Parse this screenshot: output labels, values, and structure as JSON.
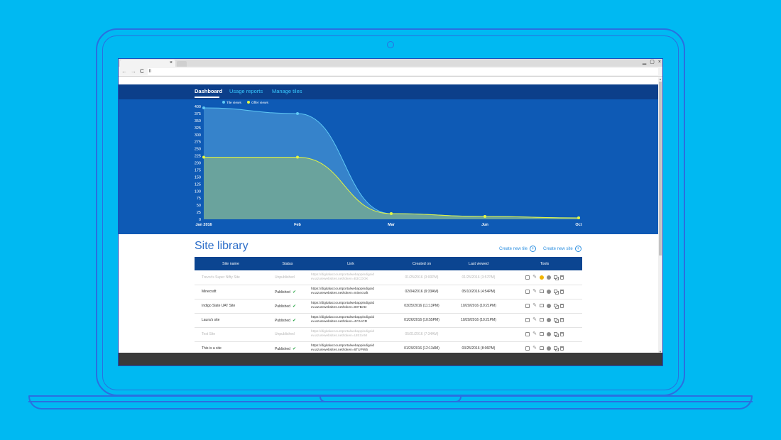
{
  "browser": {
    "tab_close_glyph": "×",
    "window_controls": [
      "▁",
      "▢",
      "×"
    ],
    "address_text": "fi",
    "nav": {
      "back": "←",
      "forward": "→",
      "reload": "C"
    }
  },
  "dashboard": {
    "tabs": [
      {
        "label": "Dashboard",
        "active": true
      },
      {
        "label": "Usage reports",
        "active": false
      },
      {
        "label": "Manage tiles",
        "active": false
      }
    ]
  },
  "chart_data": {
    "type": "area",
    "categories": [
      "Jan 2016",
      "Feb",
      "Mar",
      "Jun",
      "Oct"
    ],
    "series": [
      {
        "name": "Tile views",
        "color": "#5fc8f5",
        "values": [
          395,
          375,
          20,
          10,
          5
        ]
      },
      {
        "name": "Offer views",
        "color": "#e4f542",
        "values": [
          220,
          220,
          20,
          10,
          5
        ]
      }
    ],
    "y_ticks": [
      400,
      375,
      350,
      325,
      300,
      275,
      250,
      225,
      200,
      175,
      150,
      125,
      100,
      75,
      50,
      25,
      0
    ],
    "ylim": [
      0,
      400
    ],
    "legend_placement": "top-left",
    "grid": false
  },
  "site_library": {
    "title": "Site library",
    "actions": [
      {
        "label": "Create new tile",
        "icon": "plus-circle-icon"
      },
      {
        "label": "Create new site",
        "icon": "plus-circle-icon"
      }
    ],
    "columns": [
      "Site name",
      "Status",
      "Link",
      "Created on",
      "Last viewed",
      "Tools"
    ],
    "rows": [
      {
        "name": "Trevor's Super Nifty Site",
        "status": "Unpublished",
        "link1": "https://digitalaccountportalwebappindigoid",
        "link2": "ev.azurewebsites.net/token=B3COOK",
        "created": "01/25/2016 (3:00PM)",
        "viewed": "01/25/2016 (3:57PM)",
        "muted": true,
        "warn": true
      },
      {
        "name": "Minecraft",
        "status": "Published",
        "link1": "https://digitalaccountportalwebappindigoid",
        "link2": "ev.azurewebsites.net/token=minecraft",
        "created": "02/04/2016 (9:33AM)",
        "viewed": "05/10/2016 (4:54PM)",
        "muted": false,
        "warn": false
      },
      {
        "name": "Indigo Slate UAT Site",
        "status": "Published",
        "link1": "https://digitalaccountportalwebappindigoid",
        "link2": "ev.azurewebsites.net/token=007BAD",
        "created": "03/25/2016 (11:13PM)",
        "viewed": "10/20/2016 (10:21PM)",
        "muted": false,
        "warn": false
      },
      {
        "name": "Laura's site",
        "status": "Published",
        "link1": "https://digitalaccountportalwebappindigoid",
        "link2": "ev.azurewebsites.net/token=4Y2ACD",
        "created": "01/26/2016 (10:55PM)",
        "viewed": "10/20/2016 (10:21PM)",
        "muted": false,
        "warn": false
      },
      {
        "name": "Test Site",
        "status": "Unpublished",
        "link1": "https://digitalaccountportalwebappindigoid",
        "link2": "ev.azurewebsites.net/token=UIEXAM",
        "created": "05/01/2016 (7:34AM)",
        "viewed": "",
        "muted": true,
        "warn": false
      },
      {
        "name": "This is a site",
        "status": "Published",
        "link1": "https://digitalaccountportalwebappindigoid",
        "link2": "ev.azurewebsites.net/token=6TUPW5",
        "created": "01/29/2016 (12:13AM)",
        "viewed": "03/25/2016 (8:06PM)",
        "muted": false,
        "warn": false
      }
    ]
  }
}
